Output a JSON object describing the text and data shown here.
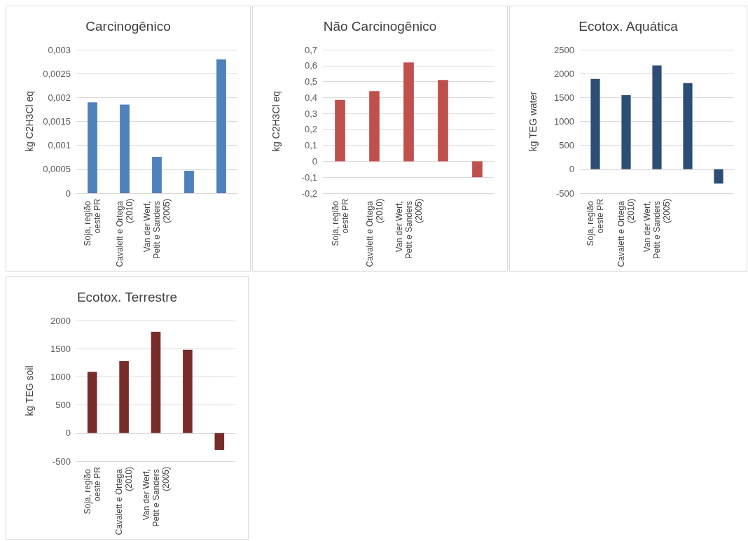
{
  "chart_data": [
    {
      "type": "bar",
      "title": "Carcinogênico",
      "ylabel": "kg C2H3Cl eq",
      "categories": [
        "Soja, região oeste PR",
        "Cavalett e Ortega (2010)",
        "Van der Werf, Petit e Sanders (2005)",
        null,
        null
      ],
      "series": [
        {
          "color": "#4f81bd",
          "values": [
            0.0019,
            0.00185,
            0.00076,
            0.00047,
            0.0028
          ]
        }
      ],
      "ylim": [
        0,
        0.003
      ],
      "yticks": [
        0,
        {
          "value": 0.0005,
          "label": "0,0005"
        },
        {
          "value": 0.001,
          "label": "0,001"
        },
        {
          "value": 0.0015,
          "label": "0,0015"
        },
        {
          "value": 0.002,
          "label": "0,002"
        },
        {
          "value": 0.0025,
          "label": "0,0025"
        },
        {
          "value": 0.003,
          "label": "0,003"
        }
      ],
      "grid": "y"
    },
    {
      "type": "bar",
      "title": "Não Carcinogênico",
      "ylabel": "kg C2H3Cl eq",
      "categories": [
        "Soja, região oeste PR",
        "Cavalett e Ortega (2010)",
        "Van der Werf, Petit e Sanders (2005)",
        null,
        null
      ],
      "series": [
        {
          "color": "#c0504d",
          "values": [
            0.385,
            0.44,
            0.62,
            0.51,
            -0.1
          ]
        }
      ],
      "ylim": [
        -0.2,
        0.7
      ],
      "yticks": [
        {
          "value": -0.2,
          "label": "-0,2"
        },
        {
          "value": -0.1,
          "label": "-0,1"
        },
        0,
        {
          "value": 0.1,
          "label": "0,1"
        },
        {
          "value": 0.2,
          "label": "0,2"
        },
        {
          "value": 0.3,
          "label": "0,3"
        },
        {
          "value": 0.4,
          "label": "0,4"
        },
        {
          "value": 0.5,
          "label": "0,5"
        },
        {
          "value": 0.6,
          "label": "0,6"
        },
        {
          "value": 0.7,
          "label": "0,7"
        }
      ],
      "grid": "y"
    },
    {
      "type": "bar",
      "title": "Ecotox. Aquática",
      "ylabel": "kg TEG water",
      "categories": [
        "Soja, região oeste PR",
        "Cavalett e Ortega (2010)",
        "Van der Werf, Petit e Sanders (2005)",
        null,
        null
      ],
      "series": [
        {
          "color": "#2c4d75",
          "values": [
            1890,
            1550,
            2170,
            1800,
            -300
          ]
        }
      ],
      "ylim": [
        -500,
        2500
      ],
      "yticks": [
        -500,
        0,
        500,
        1000,
        1500,
        2000,
        2500
      ],
      "grid": "y"
    },
    {
      "type": "bar",
      "title": "Ecotox. Terrestre",
      "ylabel": "kg TEG soil",
      "categories": [
        "Soja, região oeste PR",
        "Cavalett e Ortega (2010)",
        "Van der Werf, Petit e Sanders (2005)",
        null,
        null
      ],
      "series": [
        {
          "color": "#772c2a",
          "values": [
            1090,
            1280,
            1800,
            1480,
            -300
          ]
        }
      ],
      "ylim": [
        -500,
        2000
      ],
      "yticks": [
        -500,
        0,
        500,
        1000,
        1500,
        2000
      ],
      "grid": "y"
    }
  ]
}
